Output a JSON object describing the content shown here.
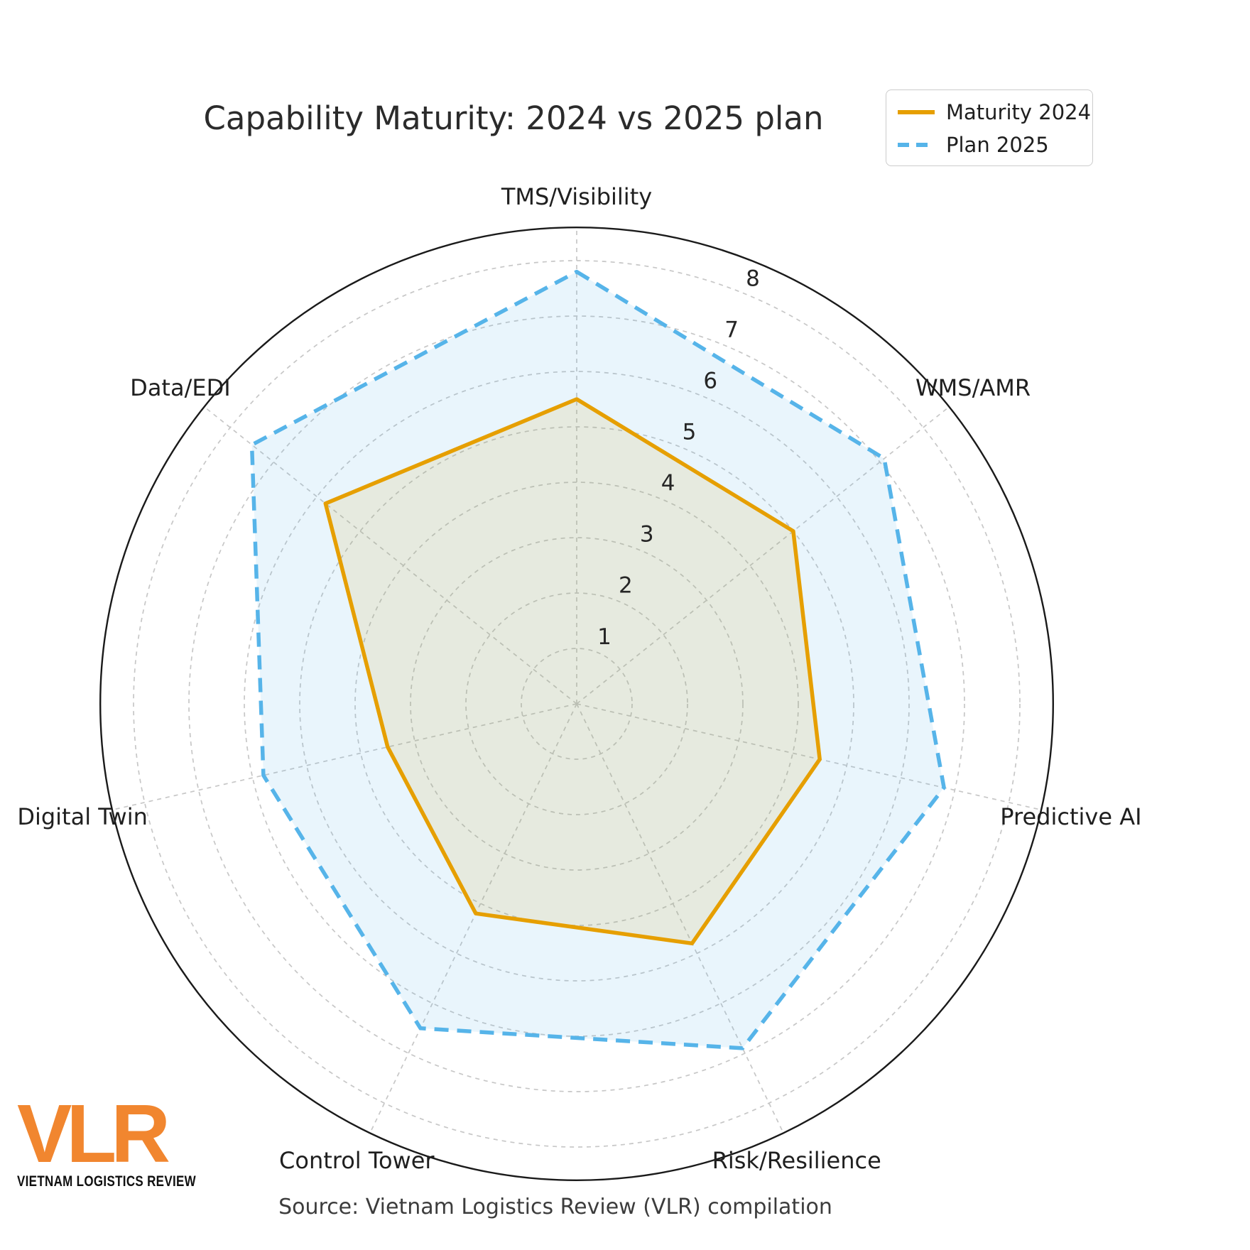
{
  "title": "Capability Maturity: 2024 vs 2025 plan",
  "source": "Source: Vietnam Logistics Review (VLR) compilation",
  "logo": {
    "text": "VLR",
    "subtext": "VIETNAM LOGISTICS REVIEW",
    "color": "#F1862F"
  },
  "legend": {
    "items": [
      {
        "label": "Maturity 2024",
        "color": "#E69F00",
        "style": "solid"
      },
      {
        "label": "Plan 2025",
        "color": "#56B4E9",
        "style": "dashed"
      }
    ]
  },
  "chart_data": {
    "type": "radar",
    "title": "Capability Maturity: 2024 vs 2025 plan",
    "categories": [
      "TMS/Visibility",
      "WMS/AMR",
      "Predictive AI",
      "Risk/Resilience",
      "Control Tower",
      "Digital Twin",
      "Data/EDI"
    ],
    "series": [
      {
        "name": "Maturity 2024",
        "values": [
          5.5,
          5.0,
          4.5,
          4.8,
          4.2,
          3.5,
          5.8
        ],
        "color": "#E69F00",
        "line_style": "solid",
        "fill_opacity": 0.13
      },
      {
        "name": "Plan 2025",
        "values": [
          7.8,
          7.1,
          6.8,
          6.9,
          6.5,
          5.8,
          7.5
        ],
        "color": "#56B4E9",
        "line_style": "dashed",
        "fill_opacity": 0.13
      }
    ],
    "radial_ticks": [
      1,
      2,
      3,
      4,
      5,
      6,
      7,
      8
    ],
    "r_min": 0,
    "r_max": 8.6,
    "start_angle_deg": 90,
    "direction": "clockwise",
    "grid": true,
    "grid_style": "dashed",
    "tick_label_angle_deg": 67.5,
    "legend_position": "upper right"
  }
}
